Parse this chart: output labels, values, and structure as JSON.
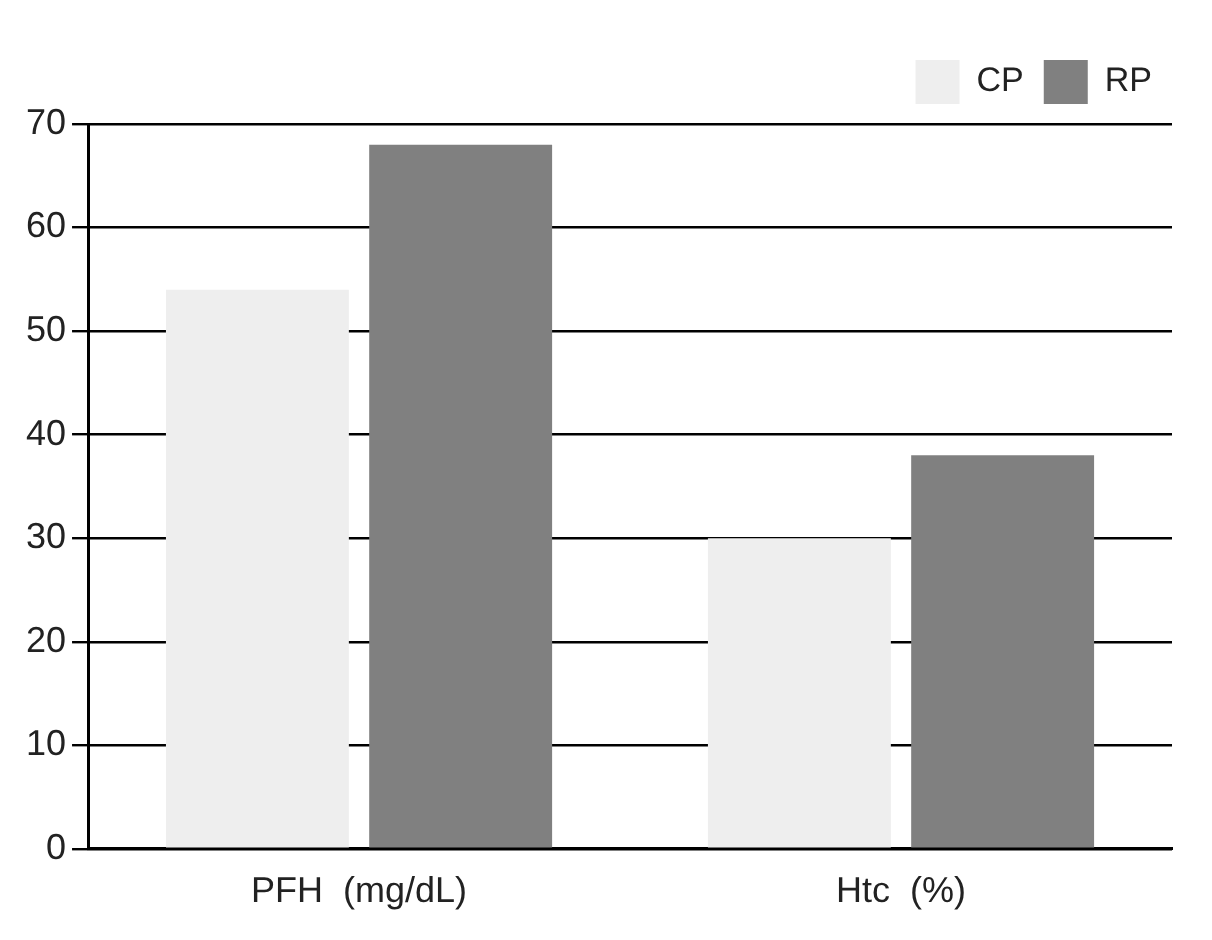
{
  "chart_data": {
    "type": "bar",
    "categories": [
      "PFH  (mg/dL)",
      "Htc  (%)"
    ],
    "series": [
      {
        "name": "CP",
        "color": "#eeeeee",
        "values": [
          54,
          30
        ]
      },
      {
        "name": "RP",
        "color": "#808080",
        "values": [
          68,
          38
        ]
      }
    ],
    "ylim": [
      0,
      70
    ],
    "yticks": [
      0,
      10,
      20,
      30,
      40,
      50,
      60,
      70
    ],
    "grid": "y",
    "legend": "top right"
  }
}
